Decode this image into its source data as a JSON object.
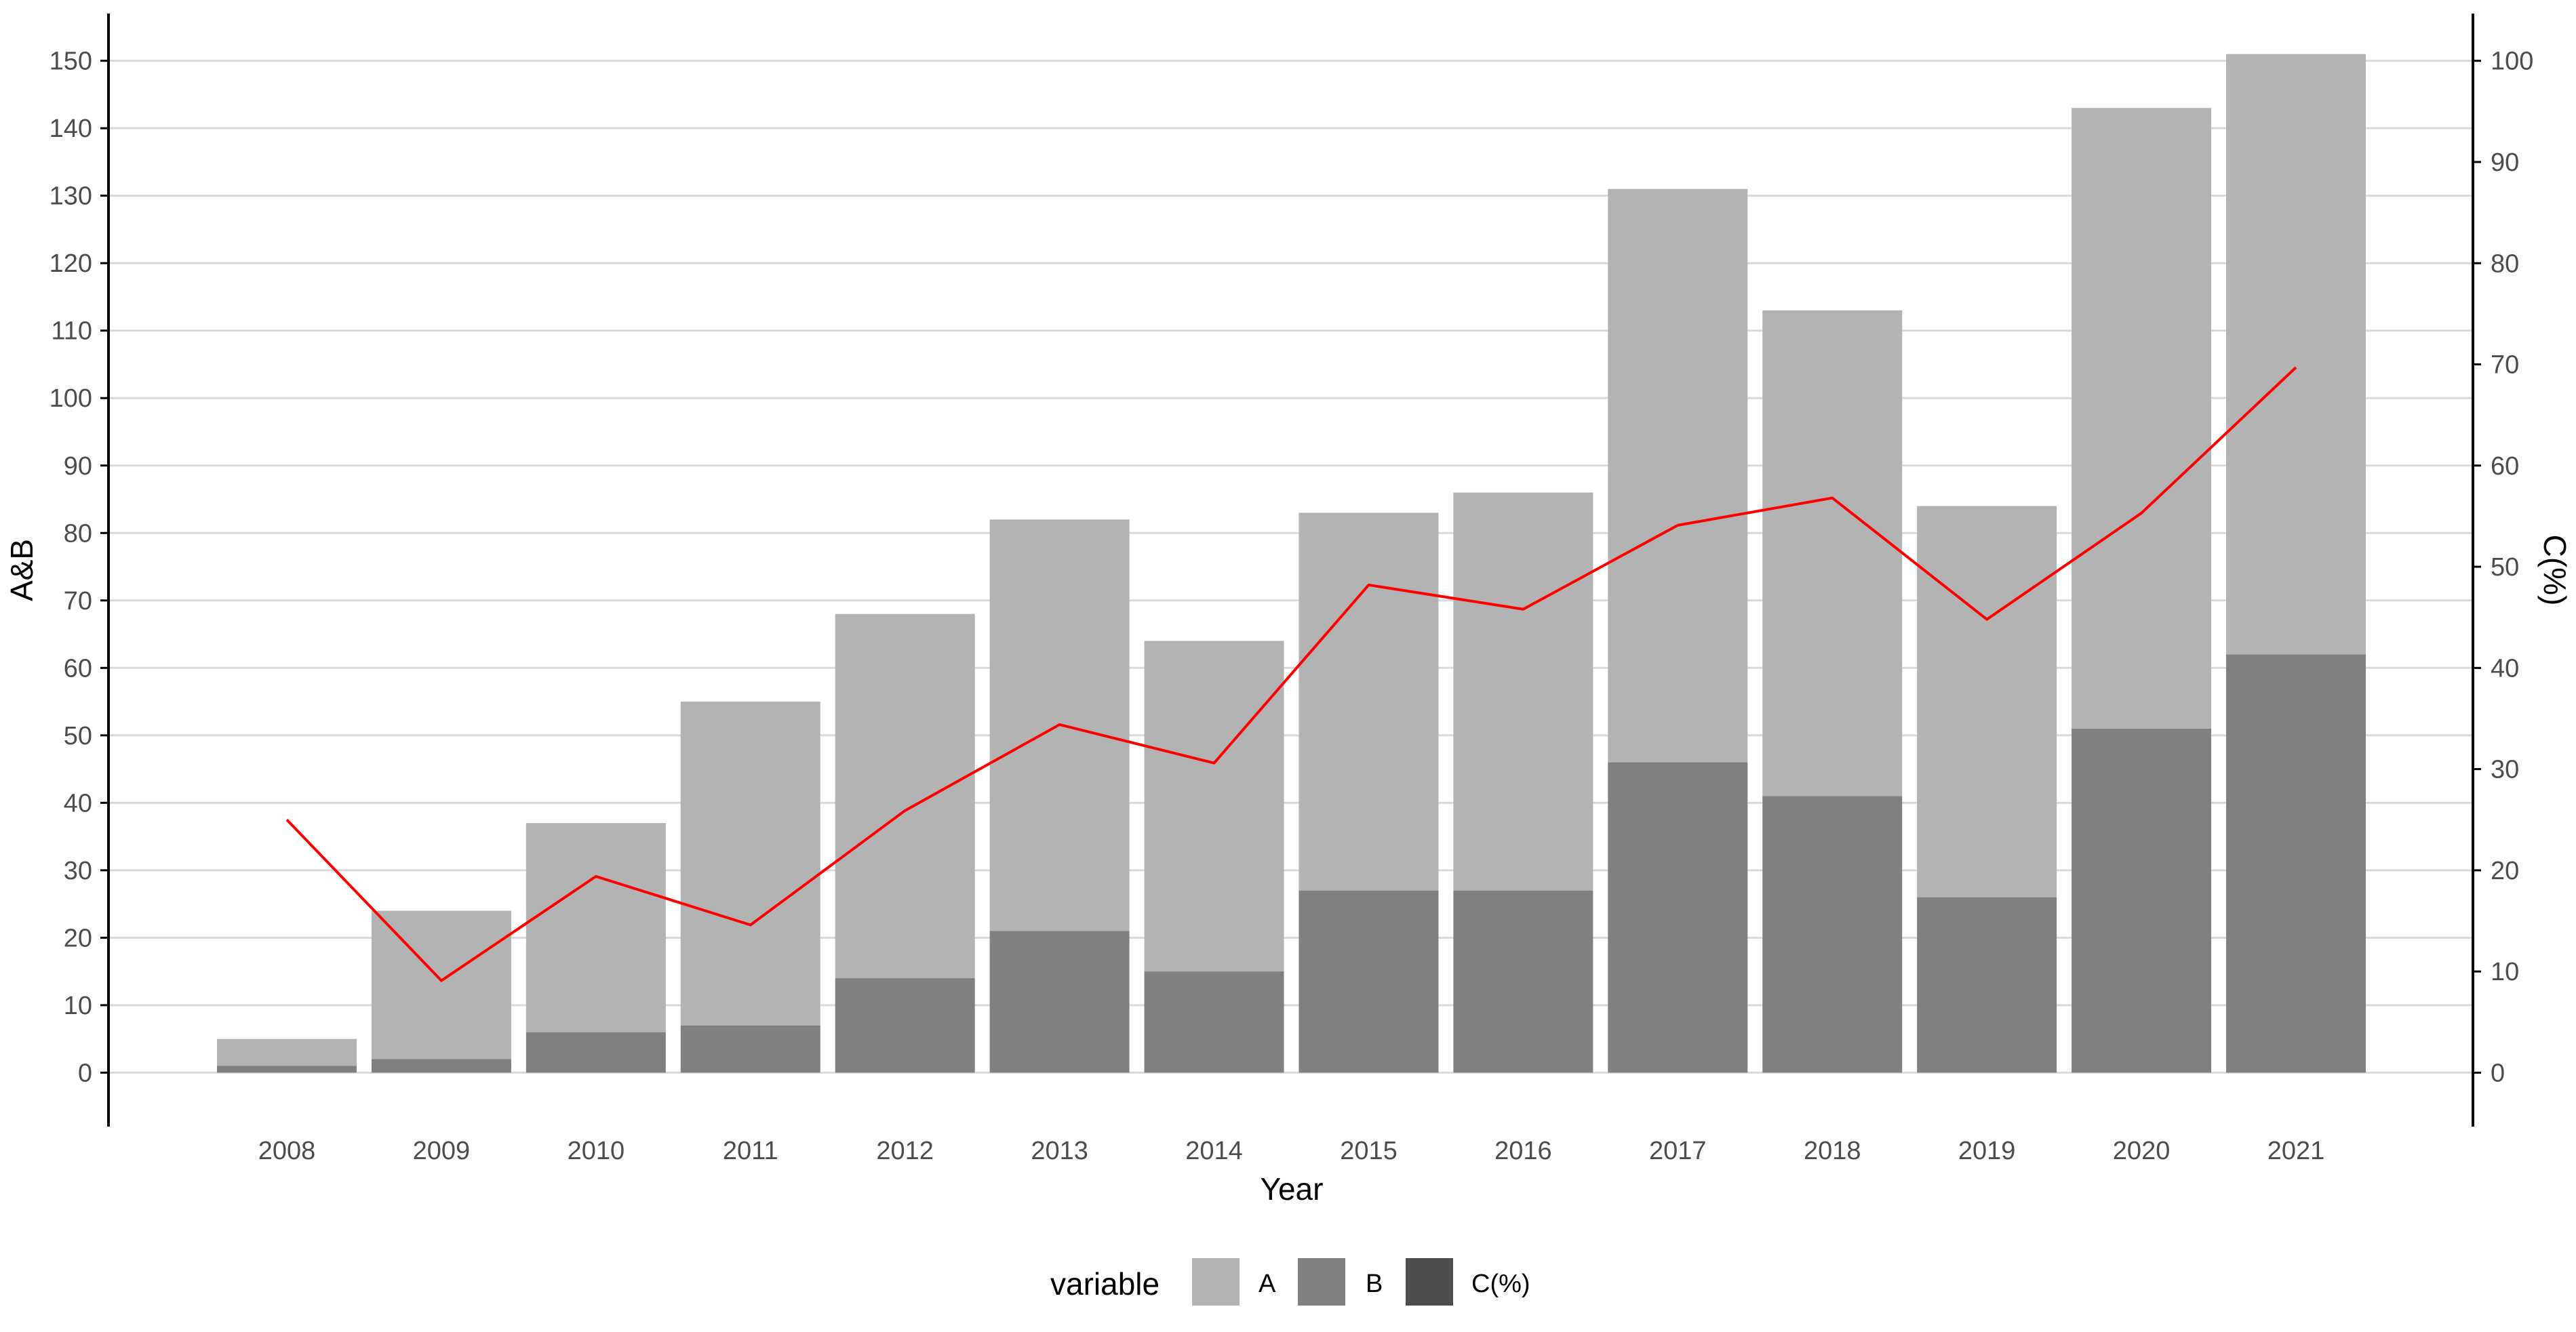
{
  "chart_data": {
    "type": "bar",
    "stacked": true,
    "x": [
      2008,
      2009,
      2010,
      2011,
      2012,
      2013,
      2014,
      2015,
      2016,
      2017,
      2018,
      2019,
      2020,
      2021
    ],
    "xlabel": "Year",
    "ylabel_left": "A&B",
    "ylabel_right": "C(%)",
    "ylim_left": [
      -8,
      157
    ],
    "ylim_right": [
      -5.33,
      104.67
    ],
    "yticks_left": [
      0,
      10,
      20,
      30,
      40,
      50,
      60,
      70,
      80,
      90,
      100,
      110,
      120,
      130,
      140,
      150
    ],
    "yticks_right": [
      0,
      10,
      20,
      30,
      40,
      50,
      60,
      70,
      80,
      90,
      100
    ],
    "series": [
      {
        "name": "A",
        "type": "bar",
        "axis": "left",
        "values": [
          4,
          22,
          31,
          48,
          54,
          61,
          49,
          56,
          59,
          85,
          72,
          58,
          92,
          89
        ],
        "color": "#b3b3b3"
      },
      {
        "name": "B",
        "type": "bar",
        "axis": "left",
        "values": [
          1,
          2,
          6,
          7,
          14,
          21,
          15,
          27,
          27,
          46,
          41,
          26,
          51,
          62
        ],
        "color": "#808080"
      },
      {
        "name": "C(%)",
        "type": "line",
        "axis": "right",
        "values": [
          25.0,
          9.1,
          19.4,
          14.6,
          25.9,
          34.4,
          30.6,
          48.2,
          45.8,
          54.1,
          56.8,
          44.8,
          55.3,
          69.7
        ],
        "color": "#ff0000"
      }
    ],
    "grid": "horizontal",
    "legend": {
      "position": "bottom",
      "title": "variable",
      "items": [
        {
          "label": "A",
          "color": "#b3b3b3"
        },
        {
          "label": "B",
          "color": "#808080"
        },
        {
          "label": "C(%)",
          "color": "#4d4d4d"
        }
      ]
    },
    "colors": {
      "grid": "#d9d9d9",
      "axis": "#000000",
      "tick_text": "#4d4d4d",
      "title_text": "#000000"
    }
  }
}
